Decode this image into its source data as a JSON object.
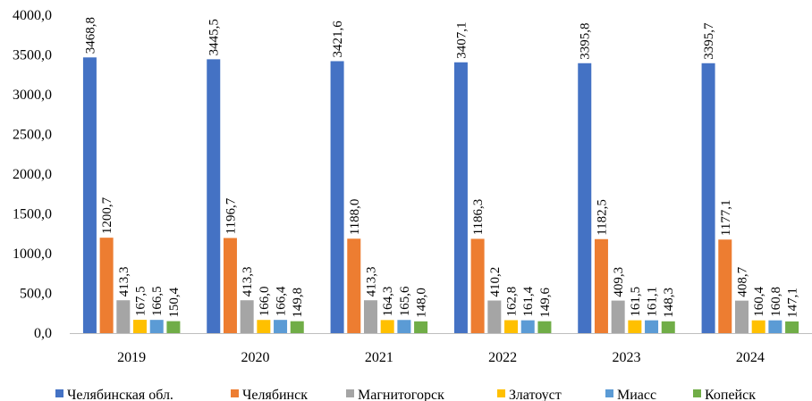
{
  "chart_data": {
    "type": "bar",
    "categories": [
      "2019",
      "2020",
      "2021",
      "2022",
      "2023",
      "2024"
    ],
    "series": [
      {
        "name": "Челябинская обл.",
        "color": "#4472c4",
        "values": [
          3468.8,
          3445.5,
          3421.6,
          3407.1,
          3395.8,
          3395.7
        ],
        "labels": [
          "3468,8",
          "3445,5",
          "3421,6",
          "3407,1",
          "3395,8",
          "3395,7"
        ]
      },
      {
        "name": "Челябинск",
        "color": "#ed7d31",
        "values": [
          1200.7,
          1196.7,
          1188.0,
          1186.3,
          1182.5,
          1177.1
        ],
        "labels": [
          "1200,7",
          "1196,7",
          "1188,0",
          "1186,3",
          "1182,5",
          "1177,1"
        ]
      },
      {
        "name": "Магнитогорск",
        "color": "#a5a5a5",
        "values": [
          413.3,
          413.3,
          413.3,
          410.2,
          409.3,
          408.7
        ],
        "labels": [
          "413,3",
          "413,3",
          "413,3",
          "410,2",
          "409,3",
          "408,7"
        ]
      },
      {
        "name": "Златоуст",
        "color": "#ffc000",
        "values": [
          167.5,
          166.0,
          164.3,
          162.8,
          161.5,
          160.4
        ],
        "labels": [
          "167,5",
          "166,0",
          "164,3",
          "162,8",
          "161,5",
          "160,4"
        ]
      },
      {
        "name": "Миасс",
        "color": "#5b9bd5",
        "values": [
          166.5,
          166.4,
          165.6,
          161.4,
          161.1,
          160.8
        ],
        "labels": [
          "166,5",
          "166,4",
          "165,6",
          "161,4",
          "161,1",
          "160,8"
        ]
      },
      {
        "name": "Копейск",
        "color": "#70ad47",
        "values": [
          150.4,
          149.8,
          148.0,
          149.6,
          148.3,
          147.1
        ],
        "labels": [
          "150,4",
          "149,8",
          "148,0",
          "149,6",
          "148,3",
          "147,1"
        ]
      }
    ],
    "yticks": [
      "0,0",
      "500,0",
      "1000,0",
      "1500,0",
      "2000,0",
      "2500,0",
      "3000,0",
      "3500,0",
      "4000,0"
    ],
    "ylim": [
      0,
      4000
    ],
    "grid": false,
    "legend": "bottom"
  }
}
